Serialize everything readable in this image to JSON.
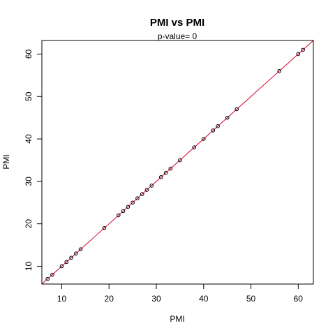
{
  "chart_data": {
    "type": "scatter",
    "title": "PMI  vs  PMI",
    "subtitle": "p-value= 0",
    "xlabel": "PMI",
    "ylabel": "PMI",
    "xlim": [
      5.8,
      63.2
    ],
    "ylim": [
      5.8,
      63.2
    ],
    "xticks": [
      10,
      20,
      30,
      40,
      50,
      60
    ],
    "yticks": [
      10,
      20,
      30,
      40,
      50,
      60
    ],
    "grid": false,
    "colors": {
      "points": "#000000",
      "fit_line": "#d4002a",
      "frame": "#000000"
    },
    "fit_line": {
      "slope": 1,
      "intercept": 0
    },
    "x": [
      7,
      8,
      10,
      11,
      12,
      13,
      14,
      19,
      22,
      23,
      24,
      25,
      26,
      27,
      28,
      29,
      31,
      32,
      33,
      35,
      38,
      40,
      42,
      43,
      45,
      47,
      56,
      60,
      61
    ],
    "y": [
      7,
      8,
      10,
      11,
      12,
      13,
      14,
      19,
      22,
      23,
      24,
      25,
      26,
      27,
      28,
      29,
      31,
      32,
      33,
      35,
      38,
      40,
      42,
      43,
      45,
      47,
      56,
      60,
      61
    ]
  }
}
